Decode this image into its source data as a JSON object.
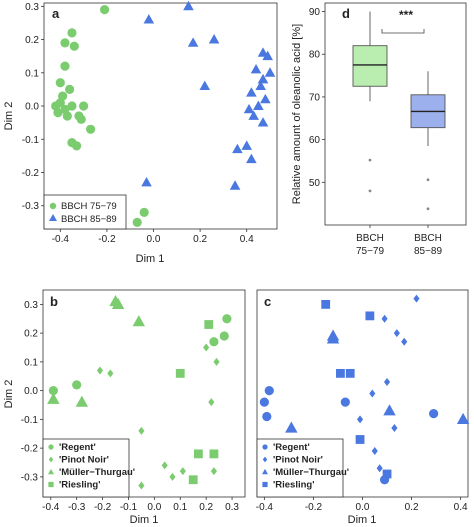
{
  "chart_data": [
    {
      "panel": "a",
      "type": "scatter",
      "xlabel": "Dim 1",
      "ylabel": "Dim 2",
      "xlim": [
        -0.47,
        0.53
      ],
      "ylim": [
        -0.37,
        0.31
      ],
      "xticks": [
        "-0.4",
        "-0.2",
        "0.0",
        "0.2",
        "0.4"
      ],
      "xtick_values": [
        -0.4,
        -0.2,
        0.0,
        0.2,
        0.4
      ],
      "yticks": [
        "0.3",
        "0.2",
        "0.1",
        "0.0",
        "-0.1",
        "-0.2",
        "-0.3"
      ],
      "ytick_values": [
        0.3,
        0.2,
        0.1,
        0.0,
        -0.1,
        -0.2,
        -0.3
      ],
      "legend_placement": "bottom-left",
      "series": [
        {
          "name": "BBCH 75−79",
          "color": "#7acc6e",
          "marker": "circle",
          "points": [
            [
              -0.21,
              0.29
            ],
            [
              -0.35,
              0.22
            ],
            [
              -0.38,
              0.19
            ],
            [
              -0.34,
              0.18
            ],
            [
              -0.38,
              0.12
            ],
            [
              -0.4,
              0.07
            ],
            [
              -0.36,
              0.05
            ],
            [
              -0.39,
              0.03
            ],
            [
              -0.4,
              0.01
            ],
            [
              -0.42,
              0.0
            ],
            [
              -0.35,
              0.0
            ],
            [
              -0.38,
              -0.01
            ],
            [
              -0.41,
              -0.02
            ],
            [
              -0.37,
              -0.03
            ],
            [
              -0.3,
              0.0
            ],
            [
              -0.31,
              -0.04
            ],
            [
              -0.32,
              -0.03
            ],
            [
              -0.27,
              -0.07
            ],
            [
              -0.35,
              -0.11
            ],
            [
              -0.33,
              -0.12
            ],
            [
              -0.04,
              -0.32
            ],
            [
              -0.07,
              -0.35
            ]
          ]
        },
        {
          "name": "BBCH 85−89",
          "color": "#4a78e0",
          "marker": "triangle",
          "points": [
            [
              0.15,
              0.3
            ],
            [
              -0.02,
              0.26
            ],
            [
              0.17,
              0.19
            ],
            [
              0.26,
              0.2
            ],
            [
              0.22,
              0.06
            ],
            [
              0.47,
              0.16
            ],
            [
              0.49,
              0.15
            ],
            [
              0.44,
              0.11
            ],
            [
              0.5,
              0.1
            ],
            [
              0.47,
              0.08
            ],
            [
              0.46,
              0.06
            ],
            [
              0.42,
              0.04
            ],
            [
              0.48,
              0.02
            ],
            [
              0.45,
              0.0
            ],
            [
              0.41,
              -0.01
            ],
            [
              0.43,
              -0.03
            ],
            [
              0.47,
              -0.05
            ],
            [
              0.4,
              -0.12
            ],
            [
              0.36,
              -0.13
            ],
            [
              0.42,
              -0.16
            ],
            [
              -0.03,
              -0.23
            ],
            [
              0.35,
              -0.24
            ]
          ]
        }
      ]
    },
    {
      "panel": "d",
      "type": "box",
      "ylabel": "Relative amount of oleanolic acid [%]",
      "ylim": [
        40,
        92
      ],
      "yticks": [
        "50",
        "60",
        "70",
        "80",
        "90"
      ],
      "ytick_values": [
        50,
        60,
        70,
        80,
        90
      ],
      "significance": "***",
      "categories": [
        "BBCH\n75−79",
        "BBCH\n85−89"
      ],
      "boxes": [
        {
          "label_lines": [
            "BBCH",
            "75−79"
          ],
          "color": "#b9eeb0",
          "whisker_low": 69,
          "q1": 72.5,
          "median": 77.5,
          "q3": 82,
          "whisker_high": 90,
          "outliers": [
            55.2,
            48
          ]
        },
        {
          "label_lines": [
            "BBCH",
            "85−89"
          ],
          "color": "#9db0ee",
          "whisker_low": 58.5,
          "q1": 62.8,
          "median": 66.6,
          "q3": 70.5,
          "whisker_high": 76,
          "outliers": [
            50.6,
            43.8
          ]
        }
      ]
    },
    {
      "panel": "b",
      "type": "scatter",
      "xlabel": "Dim 1",
      "ylabel": "Dim 2",
      "xlim": [
        -0.43,
        0.35
      ],
      "ylim": [
        -0.37,
        0.35
      ],
      "xticks": [
        "-0.4",
        "-0.3",
        "-0.2",
        "-0.1",
        "0.0",
        "0.1",
        "0.2",
        "0.3"
      ],
      "xtick_values": [
        -0.4,
        -0.3,
        -0.2,
        -0.1,
        0.0,
        0.1,
        0.2,
        0.3
      ],
      "yticks": [
        "0.3",
        "0.2",
        "0.1",
        "0.0",
        "-0.1",
        "-0.2",
        "-0.3"
      ],
      "ytick_values": [
        0.3,
        0.2,
        0.1,
        0.0,
        -0.1,
        -0.2,
        -0.3
      ],
      "color": "#7acc6e",
      "legend_placement": "bottom-left",
      "series": [
        {
          "name": "'Regent'",
          "marker": "circle",
          "points": [
            [
              0.28,
              0.25
            ],
            [
              0.27,
              0.19
            ],
            [
              0.23,
              0.17
            ],
            [
              -0.3,
              0.02
            ],
            [
              -0.39,
              0.0
            ]
          ]
        },
        {
          "name": "'Pinot Noir'",
          "marker": "diamond",
          "points": [
            [
              -0.21,
              0.07
            ],
            [
              -0.17,
              0.06
            ],
            [
              0.2,
              0.15
            ],
            [
              0.24,
              0.1
            ],
            [
              0.22,
              -0.04
            ],
            [
              -0.05,
              -0.14
            ],
            [
              0.04,
              -0.26
            ],
            [
              0.11,
              -0.28
            ],
            [
              0.07,
              -0.3
            ],
            [
              -0.05,
              -0.33
            ],
            [
              0.23,
              -0.28
            ]
          ]
        },
        {
          "name": "'Müller−Thurgau'",
          "marker": "triangle",
          "points": [
            [
              -0.15,
              0.31
            ],
            [
              -0.14,
              0.3
            ],
            [
              -0.06,
              0.24
            ],
            [
              -0.39,
              -0.03
            ],
            [
              -0.28,
              -0.04
            ]
          ]
        },
        {
          "name": "'Riesling'",
          "marker": "square",
          "points": [
            [
              0.21,
              0.23
            ],
            [
              0.1,
              0.06
            ],
            [
              0.17,
              -0.22
            ],
            [
              0.23,
              -0.22
            ],
            [
              0.15,
              -0.31
            ]
          ]
        }
      ]
    },
    {
      "panel": "c",
      "type": "scatter",
      "xlabel": "Dim 1",
      "xlim": [
        -0.43,
        0.43
      ],
      "ylim": [
        -0.37,
        0.35
      ],
      "xticks": [
        "-0.4",
        "-0.2",
        "0.0",
        "0.2",
        "0.4"
      ],
      "xtick_values": [
        -0.4,
        -0.2,
        0.0,
        0.2,
        0.4
      ],
      "color": "#4a78e0",
      "legend_placement": "bottom-left",
      "series": [
        {
          "name": "'Regent'",
          "marker": "circle",
          "points": [
            [
              -0.38,
              0.0
            ],
            [
              -0.4,
              -0.04
            ],
            [
              -0.39,
              -0.09
            ],
            [
              -0.07,
              -0.04
            ],
            [
              0.29,
              -0.08
            ],
            [
              0.09,
              -0.31
            ]
          ]
        },
        {
          "name": "'Pinot Noir'",
          "marker": "diamond",
          "points": [
            [
              0.22,
              0.32
            ],
            [
              0.09,
              0.25
            ],
            [
              0.14,
              0.2
            ],
            [
              0.17,
              0.17
            ],
            [
              0.1,
              0.03
            ],
            [
              0.04,
              -0.01
            ],
            [
              -0.01,
              -0.1
            ],
            [
              0.13,
              -0.13
            ],
            [
              0.05,
              -0.21
            ],
            [
              0.07,
              -0.27
            ]
          ]
        },
        {
          "name": "'Müller−Thurgau'",
          "marker": "triangle",
          "points": [
            [
              -0.12,
              0.19
            ],
            [
              -0.12,
              0.18
            ],
            [
              0.11,
              -0.07
            ],
            [
              -0.29,
              -0.13
            ],
            [
              0.41,
              -0.1
            ]
          ]
        },
        {
          "name": "'Riesling'",
          "marker": "square",
          "points": [
            [
              -0.15,
              0.3
            ],
            [
              0.03,
              0.26
            ],
            [
              -0.09,
              0.06
            ],
            [
              -0.05,
              0.06
            ],
            [
              -0.01,
              -0.17
            ],
            [
              0.1,
              -0.29
            ]
          ]
        }
      ]
    }
  ]
}
